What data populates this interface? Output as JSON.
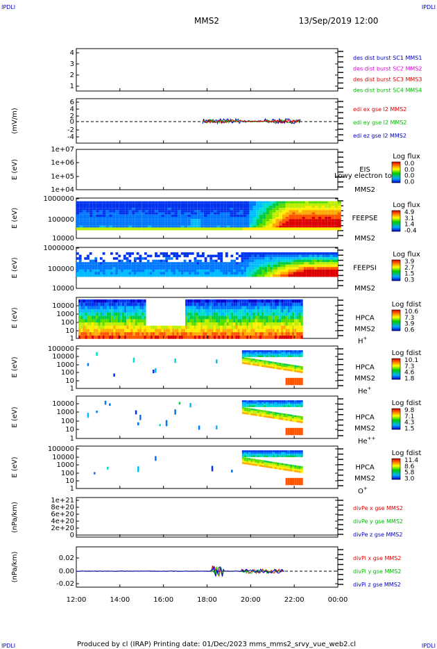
{
  "header": {
    "corner_left": "IPDLI",
    "corner_right": "IPDLI",
    "spacecraft": "MMS2",
    "datetime": "13/Sep/2019 12:00"
  },
  "footer": {
    "corner_left": "IPDLI",
    "corner_right": "IPDLI",
    "text": "Produced by cl (IRAP)   Printing date: 01/Dec/2023   mms_mms2_srvy_vue_web2.cl"
  },
  "colors": {
    "black": "#000000",
    "blue": "#0000cc",
    "magenta": "#e000e0",
    "red": "#dd0000",
    "green": "#00bb00"
  },
  "chart_data": [
    {
      "id": "p1",
      "type": "line",
      "ylabel": "",
      "yticks": [
        "4",
        "3",
        "2",
        "1"
      ],
      "legend": [
        {
          "text": "des dist burst SC1 MMS1",
          "color": "#0000cc"
        },
        {
          "text": "des dist burst SC2 MMS2",
          "color": "#e000e0"
        },
        {
          "text": "des dist burst SC3 MMS3",
          "color": "#dd0000"
        },
        {
          "text": "des dist burst SC4 MMS4",
          "color": "#00bb00"
        }
      ]
    },
    {
      "id": "p2",
      "type": "line",
      "ylabel": "(mV/m)",
      "yticks": [
        "6",
        "4",
        "2",
        "0",
        "-2",
        "-4"
      ],
      "legend": [
        {
          "text": "edi ex gse l2 MMS2",
          "color": "#dd0000"
        },
        {
          "text": "edi ey gse l2 MMS2",
          "color": "#00bb00"
        },
        {
          "text": "edi ez gse l2 MMS2",
          "color": "#0000cc"
        }
      ]
    },
    {
      "id": "p3",
      "type": "heatmap",
      "ylabel": "E (eV)",
      "yticks": [
        "1e+07",
        "1e+06",
        "1e+05",
        "1e+04"
      ],
      "label1": "EIS",
      "label2": "MMS2",
      "overlay": "Lowy electron to",
      "cbar_title": "Log flux",
      "cbar_ticks": [
        "0.0",
        "0.0",
        "0.0",
        "0.0"
      ]
    },
    {
      "id": "p4",
      "type": "heatmap",
      "ylabel": "E (eV)",
      "yticks": [
        "1000000",
        "100000",
        "10000"
      ],
      "label1": "FEEPSE",
      "label2": "MMS2",
      "cbar_title": "Log flux",
      "cbar_ticks": [
        "4.9",
        "3.1",
        "1.4",
        "-0.4"
      ]
    },
    {
      "id": "p5",
      "type": "heatmap",
      "ylabel": "E (eV)",
      "yticks": [
        "1000000",
        "100000",
        "10000"
      ],
      "label1": "FEEPSI",
      "label2": "MMS2",
      "cbar_title": "Log flux",
      "cbar_ticks": [
        "3.9",
        "2.7",
        "1.5",
        "0.3"
      ]
    },
    {
      "id": "p6",
      "type": "heatmap",
      "ylabel": "E (eV)",
      "yticks": [
        "10000",
        "1000",
        "100",
        "10",
        "1"
      ],
      "label1": "HPCA",
      "label2": "MMS2",
      "species": "H",
      "charge": "+",
      "cbar_title": "Log fdist",
      "cbar_ticks": [
        "10.6",
        "7.3",
        "3.9",
        "0.6"
      ]
    },
    {
      "id": "p7",
      "type": "heatmap",
      "ylabel": "E (eV)",
      "yticks": [
        "100000",
        "10000",
        "1000",
        "100",
        "10",
        "1"
      ],
      "label1": "HPCA",
      "label2": "MMS2",
      "species": "He",
      "charge": "+",
      "cbar_title": "Log fdist",
      "cbar_ticks": [
        "10.1",
        "7.3",
        "4.6",
        "1.8"
      ]
    },
    {
      "id": "p8",
      "type": "heatmap",
      "ylabel": "E (eV)",
      "yticks": [
        "10000",
        "1000",
        "100",
        "10",
        "1"
      ],
      "label1": "HPCA",
      "label2": "MMS2",
      "species": "He",
      "charge": "++",
      "cbar_title": "Log fdist",
      "cbar_ticks": [
        "9.8",
        "7.1",
        "4.3",
        "1.5"
      ]
    },
    {
      "id": "p9",
      "type": "heatmap",
      "ylabel": "E (eV)",
      "yticks": [
        "100000",
        "10000",
        "1000",
        "100",
        "10",
        "1"
      ],
      "label1": "HPCA",
      "label2": "MMS2",
      "species": "O",
      "charge": "+",
      "cbar_title": "Log fdist",
      "cbar_ticks": [
        "11.4",
        "8.6",
        "5.8",
        "3.0"
      ]
    },
    {
      "id": "p10",
      "type": "line",
      "ylabel": "(nPa/km)",
      "yticks": [
        "1e+21",
        "8e+20",
        "6e+20",
        "4e+20",
        "2e+20",
        "0"
      ],
      "legend": [
        {
          "text": "divPe x gse MMS2",
          "color": "#dd0000"
        },
        {
          "text": "divPe y gse MMS2",
          "color": "#00bb00"
        },
        {
          "text": "divPe z gse MMS2",
          "color": "#0000cc"
        }
      ]
    },
    {
      "id": "p11",
      "type": "line",
      "ylabel": "(nPa/km)",
      "yticks": [
        "0.02",
        "0.00",
        "-0.02"
      ],
      "legend": [
        {
          "text": "divPi x gse MMS2",
          "color": "#dd0000"
        },
        {
          "text": "divPi y gse MMS2",
          "color": "#00bb00"
        },
        {
          "text": "divPi z gse MMS2",
          "color": "#0000cc"
        }
      ]
    }
  ],
  "xaxis": {
    "ticks": [
      "12:00",
      "14:00",
      "16:00",
      "18:00",
      "20:00",
      "22:00",
      "00:00"
    ]
  }
}
